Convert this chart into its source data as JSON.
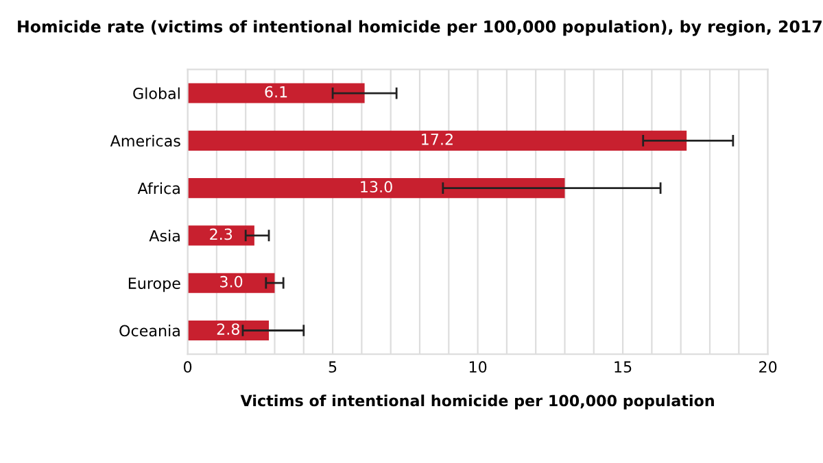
{
  "chart_data": {
    "type": "bar",
    "orientation": "horizontal",
    "title": "Homicide rate (victims of intentional homicide per 100,000 population), by region, 2017",
    "xlabel": "Victims of intentional homicide per 100,000 population",
    "categories": [
      "Global",
      "Americas",
      "Africa",
      "Asia",
      "Europe",
      "Oceania"
    ],
    "values": [
      6.1,
      17.2,
      13.0,
      2.3,
      3.0,
      2.8
    ],
    "errors": [
      [
        5.0,
        7.2
      ],
      [
        15.7,
        18.8
      ],
      [
        8.8,
        16.3
      ],
      [
        2.0,
        2.8
      ],
      [
        2.7,
        3.3
      ],
      [
        1.9,
        4.0
      ]
    ],
    "color": "#c8202f",
    "value_labels": [
      "6.1",
      "17.2",
      "13.0",
      "2.3",
      "3.0",
      "2.8"
    ],
    "xlim": [
      0,
      20
    ],
    "xticks": [
      0,
      {
        "value": 1,
        "label": null
      },
      {
        "value": 2,
        "label": null
      },
      {
        "value": 3,
        "label": null
      },
      {
        "value": 4,
        "label": null
      },
      5,
      {
        "value": 6,
        "label": null
      },
      {
        "value": 7,
        "label": null
      },
      {
        "value": 8,
        "label": null
      },
      {
        "value": 9,
        "label": null
      },
      10,
      {
        "value": 11,
        "label": null
      },
      {
        "value": 12,
        "label": null
      },
      {
        "value": 13,
        "label": null
      },
      {
        "value": 14,
        "label": null
      },
      15,
      {
        "value": 16,
        "label": null
      },
      {
        "value": 17,
        "label": null
      },
      {
        "value": 18,
        "label": null
      },
      {
        "value": 19,
        "label": null
      },
      20
    ],
    "grid": "x"
  }
}
